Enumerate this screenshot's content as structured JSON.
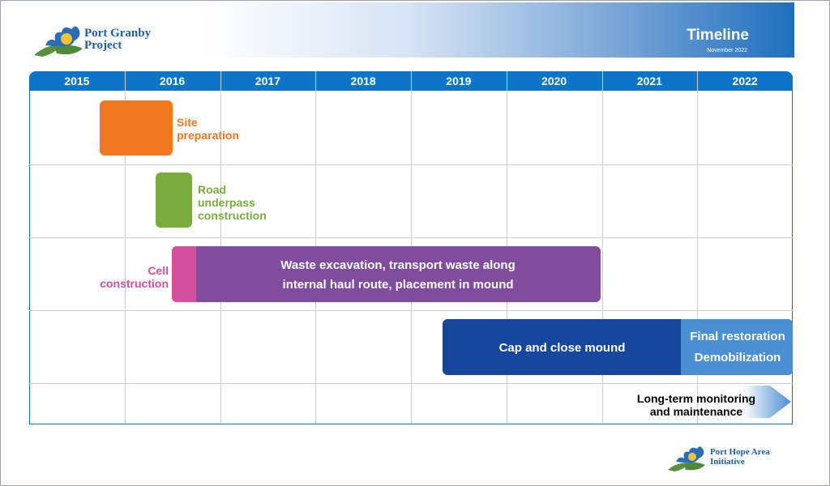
{
  "header": {
    "title": "Timeline",
    "date": "November 2022",
    "logo_line1": "Port Granby",
    "logo_line2": "Project"
  },
  "footer": {
    "logo_line1": "Port Hope Area",
    "logo_line2": "Initiative"
  },
  "years": [
    "2015",
    "2016",
    "2017",
    "2018",
    "2019",
    "2020",
    "2021",
    "2022"
  ],
  "tasks": {
    "site_prep": "Site preparation",
    "road_underpass": "Road underpass construction",
    "cell_construction": "Cell construction",
    "waste_excavation": "Waste excavation, transport waste along internal haul route, placement in mound",
    "cap_close": "Cap and close mound",
    "final_restoration": "Final restoration",
    "demobilization": "Demobilization",
    "long_term": "Long-term monitoring and maintenance"
  },
  "colors": {
    "year_bar": "#0e74c6",
    "site_prep": "#f07820",
    "road": "#78ac3c",
    "cell": "#d4509c",
    "waste": "#7f4c9e",
    "cap": "#16479c",
    "final": "#4b8fd3"
  }
}
